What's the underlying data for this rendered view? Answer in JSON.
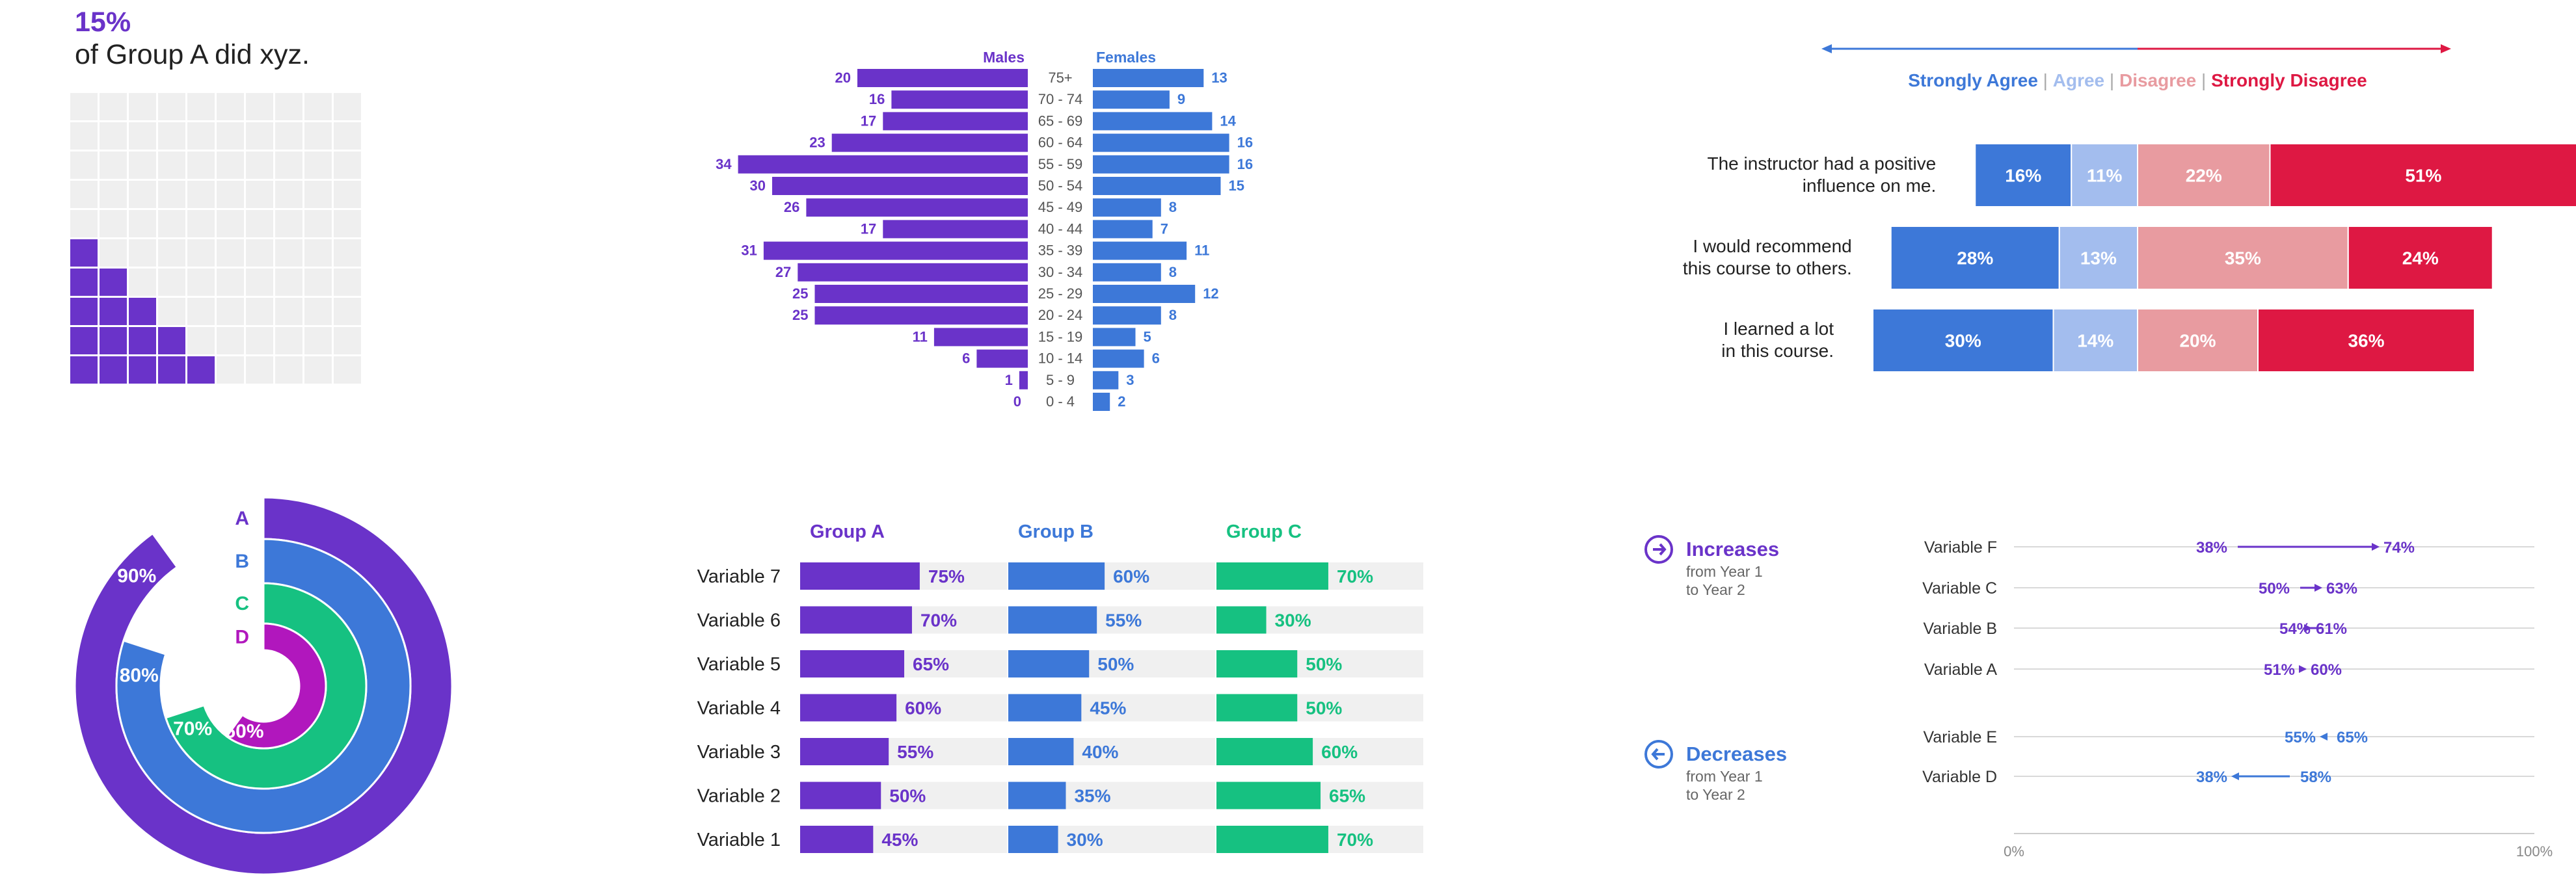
{
  "colors": {
    "purple": "#6a33c9",
    "blue": "#3d78d8",
    "light_blue": "#a3bdee",
    "pink": "#e89ba0",
    "red": "#de1843",
    "green": "#16c181",
    "magenta": "#b117bd",
    "grey_cell": "#efefef",
    "track": "#f0f0f0"
  },
  "chart_data": [
    {
      "type": "waffle",
      "headline": "15%",
      "caption": "of Group A did xyz.",
      "value_percent": 15,
      "grid": [
        10,
        10
      ]
    },
    {
      "type": "bar",
      "orientation": "horizontal",
      "layout": "population-pyramid",
      "left_title": "Males",
      "right_title": "Females",
      "categories": [
        "75+",
        "70 - 74",
        "65 - 69",
        "60 - 64",
        "55 - 59",
        "50 - 54",
        "45 - 49",
        "40 - 44",
        "35 - 39",
        "30 - 34",
        "25 - 29",
        "20 - 24",
        "15 - 19",
        "10 - 14",
        "5 - 9",
        "0 - 4"
      ],
      "series": [
        {
          "name": "Males",
          "values": [
            20,
            16,
            17,
            23,
            34,
            30,
            26,
            17,
            31,
            27,
            25,
            25,
            11,
            6,
            1,
            0
          ]
        },
        {
          "name": "Females",
          "values": [
            13,
            9,
            14,
            16,
            16,
            15,
            8,
            7,
            11,
            8,
            12,
            8,
            5,
            6,
            3,
            2
          ]
        }
      ]
    },
    {
      "type": "bar",
      "orientation": "horizontal",
      "layout": "diverging-stacked",
      "legend": [
        {
          "label": "Strongly Agree",
          "color": "#3d78d8"
        },
        {
          "label": "Agree",
          "color": "#a3bdee"
        },
        {
          "label": "Disagree",
          "color": "#e89ba0"
        },
        {
          "label": "Strongly Disagree",
          "color": "#de1843"
        }
      ],
      "rows": [
        {
          "label": [
            "The instructor had a positive",
            "influence on me."
          ],
          "values": [
            16,
            11,
            22,
            51
          ]
        },
        {
          "label": [
            "I would recommend",
            "this course to others."
          ],
          "values": [
            28,
            13,
            35,
            24
          ]
        },
        {
          "label": [
            "I learned a lot",
            "in this course."
          ],
          "values": [
            30,
            14,
            20,
            36
          ]
        }
      ],
      "value_labels": [
        [
          "16%",
          "11%",
          "22%",
          "51%"
        ],
        [
          "28%",
          "13%",
          "35%",
          "24%"
        ],
        [
          "30%",
          "14%",
          "20%",
          "36%"
        ]
      ]
    },
    {
      "type": "radial-bar",
      "series": [
        {
          "name": "A",
          "value": 90,
          "label": "90%"
        },
        {
          "name": "B",
          "value": 80,
          "label": "80%"
        },
        {
          "name": "C",
          "value": 70,
          "label": "70%"
        },
        {
          "name": "D",
          "value": 60,
          "label": "60%"
        }
      ]
    },
    {
      "type": "bar",
      "orientation": "horizontal",
      "layout": "small-multiples",
      "groups": [
        "Group A",
        "Group B",
        "Group C"
      ],
      "categories": [
        "Variable 7",
        "Variable 6",
        "Variable 5",
        "Variable 4",
        "Variable 3",
        "Variable 2",
        "Variable 1"
      ],
      "series": [
        {
          "name": "Group A",
          "values": [
            75,
            70,
            65,
            60,
            55,
            50,
            45
          ]
        },
        {
          "name": "Group B",
          "values": [
            60,
            55,
            50,
            45,
            40,
            35,
            30
          ]
        },
        {
          "name": "Group C",
          "values": [
            70,
            30,
            50,
            50,
            60,
            65,
            70
          ]
        }
      ]
    },
    {
      "type": "arrow",
      "xlim": [
        0,
        100
      ],
      "axis_labels": [
        "0%",
        "100%"
      ],
      "increases": {
        "title": "Increases",
        "subtitle": [
          "from Year 1",
          "to Year 2"
        ],
        "rows": [
          {
            "label": "Variable F",
            "from": 38,
            "to": 74
          },
          {
            "label": "Variable C",
            "from": 50,
            "to": 63
          },
          {
            "label": "Variable B",
            "from": 54,
            "to": 61
          },
          {
            "label": "Variable A",
            "from": 51,
            "to": 60
          }
        ]
      },
      "decreases": {
        "title": "Decreases",
        "subtitle": [
          "from Year 1",
          "to Year 2"
        ],
        "rows": [
          {
            "label": "Variable E",
            "from": 65,
            "to": 55
          },
          {
            "label": "Variable D",
            "from": 58,
            "to": 38
          }
        ]
      }
    }
  ]
}
